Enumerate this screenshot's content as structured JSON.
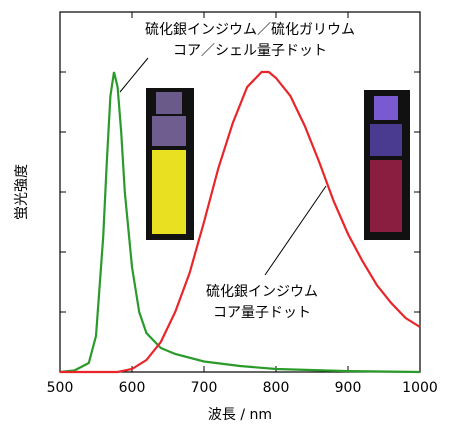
{
  "chart_data": {
    "type": "line",
    "xlabel": "波長 / nm",
    "ylabel": "蛍光強度",
    "xlim": [
      500,
      1000
    ],
    "xticks": [
      500,
      600,
      700,
      800,
      900,
      1000
    ],
    "ylim": [
      0,
      1.2
    ],
    "yticks": [
      0,
      0.2,
      0.4,
      0.6,
      0.8,
      1.0
    ],
    "ytick_labels": false,
    "series": [
      {
        "color": "#2a9a2a",
        "x": [
          500,
          520,
          540,
          550,
          560,
          565,
          570,
          575,
          580,
          585,
          590,
          600,
          610,
          620,
          640,
          660,
          700,
          750,
          800,
          900,
          1000
        ],
        "values": [
          0,
          0.005,
          0.03,
          0.12,
          0.45,
          0.7,
          0.92,
          1.0,
          0.95,
          0.8,
          0.6,
          0.35,
          0.2,
          0.13,
          0.08,
          0.06,
          0.035,
          0.02,
          0.01,
          0.003,
          0
        ]
      },
      {
        "color": "#e8262a",
        "x": [
          500,
          580,
          600,
          620,
          640,
          660,
          680,
          700,
          720,
          740,
          760,
          780,
          790,
          800,
          820,
          840,
          860,
          880,
          900,
          920,
          940,
          960,
          980,
          1000
        ],
        "values": [
          0,
          0,
          0.01,
          0.04,
          0.1,
          0.2,
          0.33,
          0.5,
          0.68,
          0.83,
          0.95,
          1.0,
          1.0,
          0.98,
          0.92,
          0.82,
          0.7,
          0.57,
          0.46,
          0.37,
          0.29,
          0.23,
          0.18,
          0.15
        ]
      }
    ],
    "annotations": [
      {
        "lines": [
          "硫化銀インジウム／硫化ガリウム",
          "コア／シェル量子ドット"
        ]
      },
      {
        "lines": [
          "硫化銀インジウム",
          "コア量子ドット"
        ]
      }
    ]
  }
}
